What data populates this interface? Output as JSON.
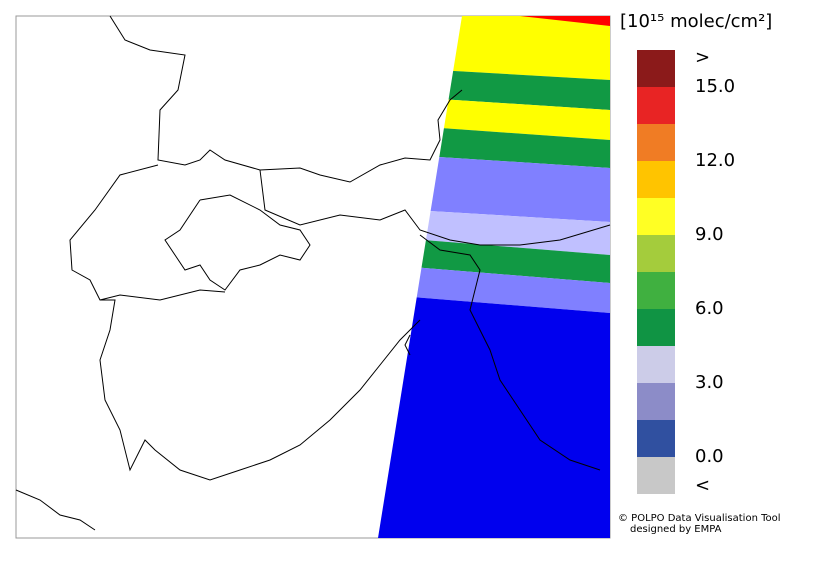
{
  "legend": {
    "title": "[10¹⁵ molec/cm²]",
    "labels": [
      ">",
      "15.0",
      "12.0",
      "9.0",
      "6.0",
      "3.0",
      "0.0",
      "<"
    ],
    "colors": [
      "#8b1a1a",
      "#e82424",
      "#f07c24",
      "#ffc400",
      "#ffff24",
      "#a4cc3c",
      "#40b040",
      "#109444",
      "#cccce8",
      "#8c8cc8",
      "#3050a0",
      "#c8c8c8"
    ]
  },
  "credit": {
    "line1": "© POLPO Data Visualisation Tool",
    "line2": "designed by EMPA"
  }
}
